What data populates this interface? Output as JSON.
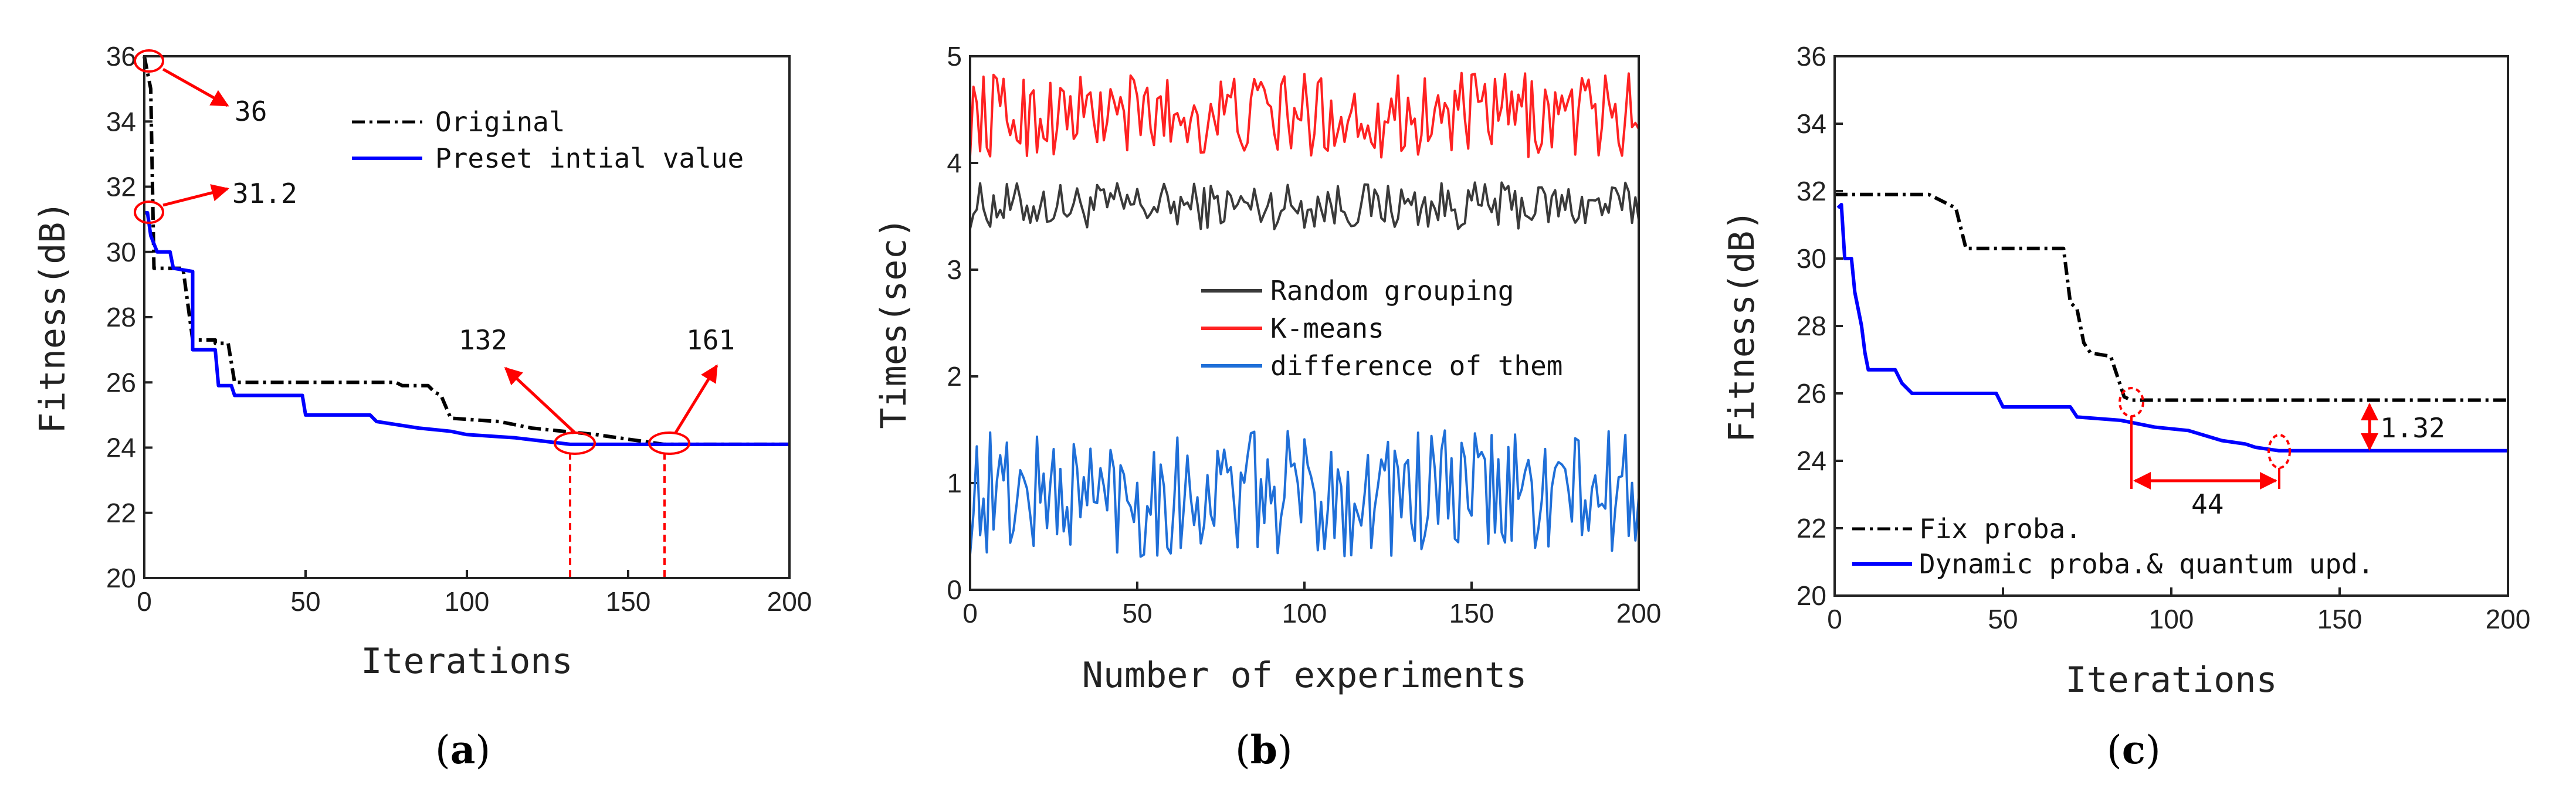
{
  "chart_data": [
    {
      "type": "line",
      "panel": "a",
      "caption": "(a)",
      "caption_letter": "a",
      "xlabel": "Iterations",
      "ylabel": "Fitness(dB)",
      "xlim": [
        0,
        200
      ],
      "ylim": [
        20,
        36
      ],
      "xticks": [
        0,
        50,
        100,
        150,
        200
      ],
      "yticks": [
        20,
        22,
        24,
        26,
        28,
        30,
        32,
        34,
        36
      ],
      "xtick_labels": [
        "0",
        "50",
        "100",
        "150",
        "200"
      ],
      "ytick_labels": [
        "20",
        "22",
        "24",
        "26",
        "28",
        "30",
        "32",
        "34",
        "36"
      ],
      "legend_position": "top-right",
      "series": [
        {
          "name": "Original",
          "color": "#000000",
          "style": "dashdot",
          "points": [
            [
              0,
              36
            ],
            [
              2,
              35
            ],
            [
              3,
              29.5
            ],
            [
              12,
              29.5
            ],
            [
              15,
              27.3
            ],
            [
              22,
              27.3
            ],
            [
              22,
              27.2
            ],
            [
              26,
              27.2
            ],
            [
              28,
              26
            ],
            [
              78,
              26
            ],
            [
              80,
              25.9
            ],
            [
              88,
              25.9
            ],
            [
              90,
              25.7
            ],
            [
              92,
              25.6
            ],
            [
              95,
              24.9
            ],
            [
              110,
              24.8
            ],
            [
              120,
              24.6
            ],
            [
              140,
              24.4
            ],
            [
              161,
              24.1
            ],
            [
              200,
              24.1
            ]
          ]
        },
        {
          "name": "Preset intial value",
          "color": "#0000ff",
          "style": "solid",
          "points": [
            [
              0,
              31.2
            ],
            [
              1,
              31.2
            ],
            [
              2,
              30.5
            ],
            [
              4,
              30
            ],
            [
              8,
              30
            ],
            [
              9,
              29.5
            ],
            [
              15,
              29.4
            ],
            [
              15,
              27
            ],
            [
              22,
              27
            ],
            [
              23,
              25.9
            ],
            [
              27,
              25.9
            ],
            [
              28,
              25.6
            ],
            [
              49,
              25.6
            ],
            [
              50,
              25
            ],
            [
              70,
              25
            ],
            [
              72,
              24.8
            ],
            [
              85,
              24.6
            ],
            [
              95,
              24.5
            ],
            [
              100,
              24.4
            ],
            [
              115,
              24.3
            ],
            [
              132,
              24.1
            ],
            [
              200,
              24.1
            ]
          ]
        }
      ],
      "annotations": [
        {
          "text": "36",
          "x": 0,
          "y": 36
        },
        {
          "text": "31.2",
          "x": 0,
          "y": 31.2
        },
        {
          "text": "132",
          "x": 132,
          "y": 24.1
        },
        {
          "text": "161",
          "x": 161,
          "y": 24.1
        }
      ]
    },
    {
      "type": "line",
      "panel": "b",
      "caption": "(b)",
      "caption_letter": "b",
      "xlabel": "Number of experiments",
      "ylabel": "Times(sec)",
      "xlim": [
        0,
        200
      ],
      "ylim": [
        0,
        5
      ],
      "xticks": [
        0,
        50,
        100,
        150,
        200
      ],
      "yticks": [
        0,
        1,
        2,
        3,
        4,
        5
      ],
      "xtick_labels": [
        "0",
        "50",
        "100",
        "150",
        "200"
      ],
      "ytick_labels": [
        "0",
        "1",
        "2",
        "3",
        "4",
        "5"
      ],
      "legend_position": "center-right",
      "series": [
        {
          "name": "Random grouping",
          "color": "#3a3a3a",
          "style": "solid",
          "mean": 3.6,
          "amplitude": 0.22,
          "n": 200
        },
        {
          "name": "K-means",
          "color": "#ff2222",
          "style": "solid",
          "mean": 4.45,
          "amplitude": 0.4,
          "n": 200
        },
        {
          "name": "difference of them",
          "color": "#1f6fd8",
          "style": "solid",
          "mean": 0.9,
          "amplitude": 0.6,
          "n": 200
        }
      ]
    },
    {
      "type": "line",
      "panel": "c",
      "caption": "(c)",
      "caption_letter": "c",
      "xlabel": "Iterations",
      "ylabel": "Fitness(dB)",
      "xlim": [
        0,
        200
      ],
      "ylim": [
        20,
        36
      ],
      "xticks": [
        0,
        50,
        100,
        150,
        200
      ],
      "yticks": [
        20,
        22,
        24,
        26,
        28,
        30,
        32,
        34,
        36
      ],
      "xtick_labels": [
        "0",
        "50",
        "100",
        "150",
        "200"
      ],
      "ytick_labels": [
        "20",
        "22",
        "24",
        "26",
        "28",
        "30",
        "32",
        "34",
        "36"
      ],
      "legend_position": "bottom-left",
      "series": [
        {
          "name": "Fix proba.",
          "color": "#000000",
          "style": "dashdot",
          "points": [
            [
              0,
              31.9
            ],
            [
              28,
              31.9
            ],
            [
              30,
              31.8
            ],
            [
              36,
              31.5
            ],
            [
              39,
              30.3
            ],
            [
              68,
              30.3
            ],
            [
              70,
              28.7
            ],
            [
              72,
              28.5
            ],
            [
              74,
              27.5
            ],
            [
              76,
              27.2
            ],
            [
              82,
              27.1
            ],
            [
              84,
              26.5
            ],
            [
              86,
              25.9
            ],
            [
              88,
              25.8
            ],
            [
              200,
              25.8
            ]
          ]
        },
        {
          "name": "Dynamic proba.& quantum upd.",
          "color": "#0000ff",
          "style": "solid",
          "points": [
            [
              1,
              31.5
            ],
            [
              2,
              31.6
            ],
            [
              3,
              30
            ],
            [
              5,
              30
            ],
            [
              6,
              29
            ],
            [
              7,
              28.5
            ],
            [
              8,
              28
            ],
            [
              9,
              27.2
            ],
            [
              10,
              26.7
            ],
            [
              18,
              26.7
            ],
            [
              20,
              26.3
            ],
            [
              23,
              26
            ],
            [
              48,
              26
            ],
            [
              50,
              25.6
            ],
            [
              70,
              25.6
            ],
            [
              72,
              25.3
            ],
            [
              85,
              25.2
            ],
            [
              95,
              25
            ],
            [
              105,
              24.9
            ],
            [
              115,
              24.6
            ],
            [
              122,
              24.5
            ],
            [
              125,
              24.4
            ],
            [
              132,
              24.3
            ],
            [
              200,
              24.3
            ]
          ]
        }
      ],
      "annotations": [
        {
          "text": "1.32",
          "x": 158,
          "y": 25.05
        },
        {
          "text": "44",
          "x": 110,
          "y": 23.5
        }
      ]
    }
  ]
}
